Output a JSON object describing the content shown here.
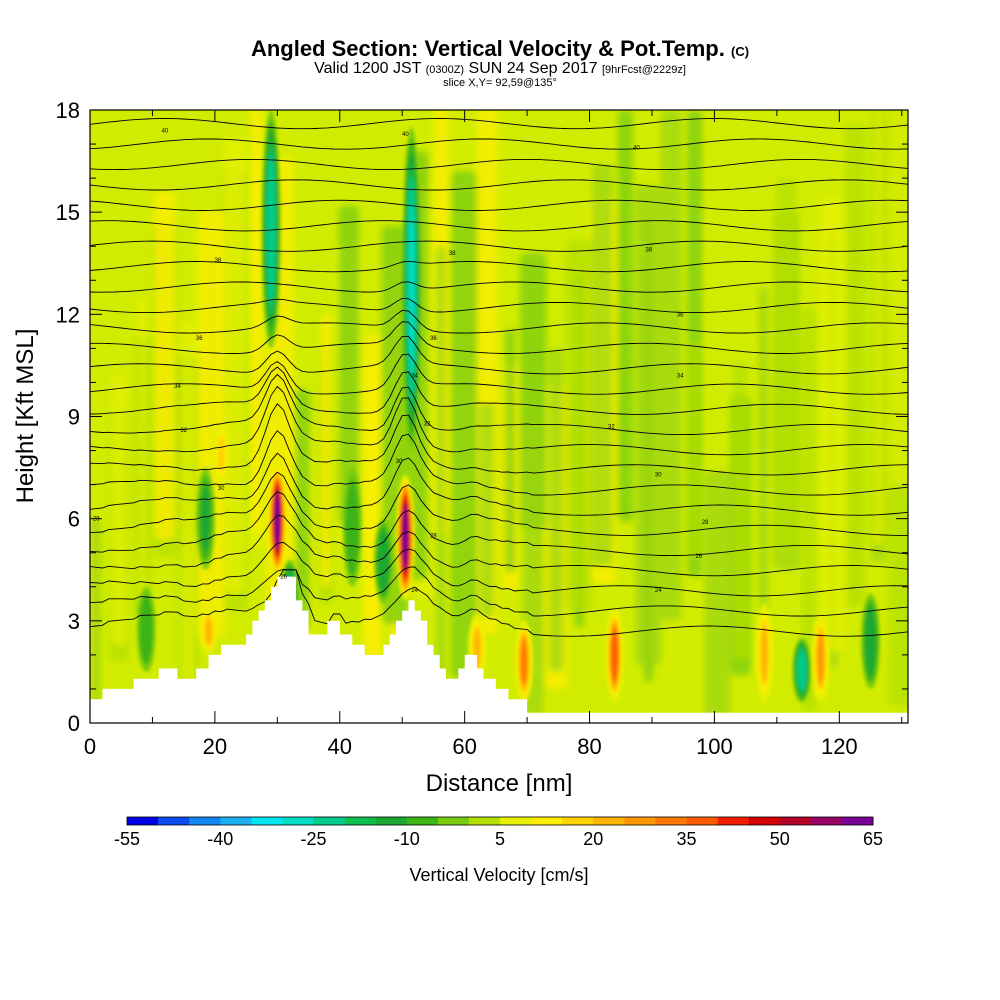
{
  "header": {
    "title": "Angled Section: Vertical Velocity & Pot.Temp.",
    "title_units": "(C)",
    "valid_prefix": "Valid 1200 JST",
    "valid_zulu": "(0300Z)",
    "valid_date": "SUN 24 Sep 2017",
    "forecast": "[9hrFcst@2229z]",
    "slice": "slice X,Y= 92,59@135°"
  },
  "chart_data": {
    "type": "heatmap",
    "title": "Angled Section: Vertical Velocity & Pot.Temp. (C)",
    "xlabel": "Distance [nm]",
    "ylabel": "Height [Kft MSL]",
    "xlim": [
      0,
      131
    ],
    "ylim": [
      0,
      18
    ],
    "x_ticks": [
      "0",
      "20",
      "40",
      "60",
      "80",
      "100",
      "120"
    ],
    "y_ticks": [
      "0",
      "3",
      "6",
      "9",
      "12",
      "15",
      "18"
    ],
    "terrain_profile": {
      "x": [
        0,
        1,
        2,
        6,
        7,
        9,
        11,
        13,
        14,
        17,
        19,
        21,
        23,
        25,
        26,
        27,
        28,
        29,
        30,
        31,
        32,
        33,
        34,
        35,
        36,
        37,
        38,
        39,
        40,
        41,
        42,
        44,
        46,
        47,
        48,
        49,
        50,
        51,
        52,
        53,
        54,
        55,
        56,
        57,
        58,
        59,
        60,
        61,
        62,
        63,
        64,
        65,
        66,
        67,
        68,
        69,
        70,
        71,
        72,
        131
      ],
      "height": [
        0.7,
        0.7,
        1.0,
        1.0,
        1.3,
        1.3,
        1.6,
        1.6,
        1.3,
        1.6,
        2.0,
        2.3,
        2.3,
        2.6,
        3.0,
        3.3,
        3.6,
        4.0,
        4.3,
        4.3,
        4.3,
        3.6,
        3.3,
        2.6,
        2.6,
        2.6,
        3.0,
        3.0,
        2.6,
        2.6,
        2.3,
        2.0,
        2.0,
        2.3,
        2.6,
        3.0,
        3.3,
        3.6,
        3.3,
        3.0,
        2.3,
        2.0,
        1.6,
        1.3,
        1.3,
        1.6,
        2.0,
        2.0,
        1.6,
        1.3,
        1.3,
        1.0,
        1.0,
        0.7,
        0.7,
        0.7,
        0.3,
        0.3,
        0.3,
        0.3
      ]
    },
    "vertical_velocity_features": [
      {
        "x": 30.0,
        "z_range": [
          4.3,
          7.6
        ],
        "w": 60
      },
      {
        "x": 50.5,
        "z_range": [
          3.6,
          7.3
        ],
        "w": 60
      },
      {
        "x": 84.0,
        "z_range": [
          0.6,
          3.4
        ],
        "w": 35
      },
      {
        "x": 69.5,
        "z_range": [
          0.6,
          3.0
        ],
        "w": 30
      },
      {
        "x": 117.0,
        "z_range": [
          0.6,
          3.2
        ],
        "w": 25
      },
      {
        "x": 108.0,
        "z_range": [
          0.6,
          3.5
        ],
        "w": 20
      },
      {
        "x": 62.0,
        "z_range": [
          1.2,
          3.2
        ],
        "w": 20
      },
      {
        "x": 19.0,
        "z_range": [
          2.0,
          3.4
        ],
        "w": 20
      },
      {
        "x": 21.0,
        "z_range": [
          7.0,
          8.8
        ],
        "w": 15
      },
      {
        "x": 29.0,
        "z_range": [
          11.0,
          18.0
        ],
        "w": -25
      },
      {
        "x": 51.5,
        "z_range": [
          8.0,
          17.5
        ],
        "w": -28
      },
      {
        "x": 114.0,
        "z_range": [
          0.6,
          2.5
        ],
        "w": -25
      },
      {
        "x": 32.0,
        "z_range": [
          2.5,
          4.8
        ],
        "w": -20
      },
      {
        "x": 47.0,
        "z_range": [
          3.5,
          6.0
        ],
        "w": -15
      },
      {
        "x": 125.0,
        "z_range": [
          1.0,
          3.8
        ],
        "w": -15
      },
      {
        "x": 18.5,
        "z_range": [
          4.5,
          7.5
        ],
        "w": -12
      },
      {
        "x": 9.0,
        "z_range": [
          1.5,
          4.0
        ],
        "w": -10
      },
      {
        "x": 42.0,
        "z_range": [
          4.0,
          7.5
        ],
        "w": -10
      }
    ],
    "theta_contours": {
      "labeled": [
        {
          "label": "40",
          "x": 12,
          "z": 17.4
        },
        {
          "label": "40",
          "x": 50.5,
          "z": 17.3
        },
        {
          "label": "40",
          "x": 87.5,
          "z": 16.9
        },
        {
          "label": "38",
          "x": 20.5,
          "z": 13.6
        },
        {
          "label": "38",
          "x": 58,
          "z": 13.8
        },
        {
          "label": "38",
          "x": 89.5,
          "z": 13.9
        },
        {
          "label": "36",
          "x": 17.5,
          "z": 11.3
        },
        {
          "label": "36",
          "x": 55,
          "z": 11.3
        },
        {
          "label": "36",
          "x": 94.5,
          "z": 12.0
        },
        {
          "label": "34",
          "x": 14,
          "z": 9.9
        },
        {
          "label": "34",
          "x": 52,
          "z": 10.2
        },
        {
          "label": "34",
          "x": 94.5,
          "z": 10.2
        },
        {
          "label": "32",
          "x": 15,
          "z": 8.6
        },
        {
          "label": "32",
          "x": 54,
          "z": 8.8
        },
        {
          "label": "32",
          "x": 83.5,
          "z": 8.7
        },
        {
          "label": "30",
          "x": 21,
          "z": 6.9
        },
        {
          "label": "30",
          "x": 49.5,
          "z": 7.7
        },
        {
          "label": "30",
          "x": 91,
          "z": 7.3
        },
        {
          "label": "28",
          "x": 1,
          "z": 6.0
        },
        {
          "label": "28",
          "x": 55,
          "z": 5.5
        },
        {
          "label": "28",
          "x": 98.5,
          "z": 5.9
        },
        {
          "label": "26",
          "x": 31,
          "z": 4.3
        },
        {
          "label": "26",
          "x": 97.5,
          "z": 4.9
        },
        {
          "label": "24",
          "x": 52,
          "z": 3.9
        },
        {
          "label": "24",
          "x": 91,
          "z": 3.9
        }
      ]
    },
    "colorbar": {
      "label": "Vertical Velocity [cm/s]",
      "tick_labels": [
        "-55",
        "-40",
        "-25",
        "-10",
        "5",
        "20",
        "35",
        "50",
        "65"
      ],
      "bounds": [
        -55,
        65
      ],
      "colors": [
        "#0000e6",
        "#0a4cf0",
        "#1486f2",
        "#1cb0ee",
        "#00e6f0",
        "#00dcc4",
        "#00cc8c",
        "#10be50",
        "#1ca830",
        "#3cb414",
        "#78cc10",
        "#b4e000",
        "#e6f000",
        "#ffee00",
        "#ffd200",
        "#ffb400",
        "#ff9600",
        "#ff7800",
        "#ff5a00",
        "#f01e00",
        "#d20000",
        "#b40028",
        "#960064",
        "#780096"
      ]
    }
  }
}
